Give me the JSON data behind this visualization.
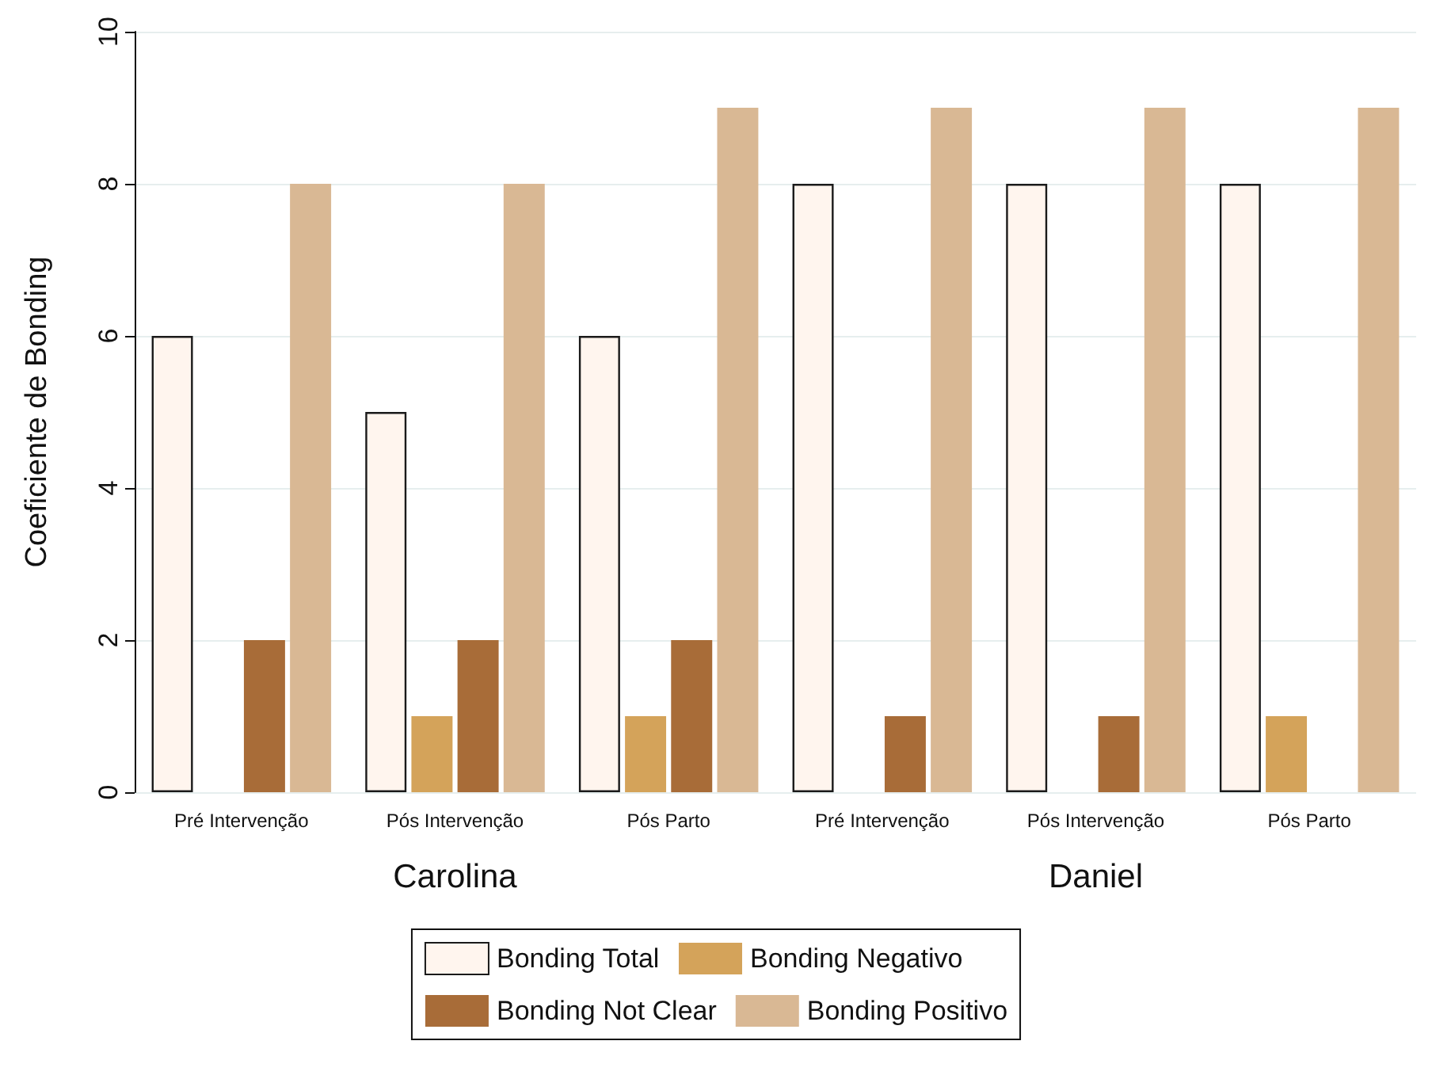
{
  "chart_data": {
    "type": "bar",
    "ylabel": "Coeficiente de Bonding",
    "categories": [
      "Pré Intervenção",
      "Pós Intervenção",
      "Pós Parto",
      "Pré Intervenção",
      "Pós Intervenção",
      "Pós Parto"
    ],
    "series": [
      {
        "name": "Bonding Total",
        "color": "#fff5ee",
        "values": [
          6,
          5,
          6,
          8,
          8,
          8
        ]
      },
      {
        "name": "Bonding Negativo",
        "color": "#d4a35a",
        "values": [
          0,
          1,
          1,
          0,
          0,
          1
        ]
      },
      {
        "name": "Bonding Not Clear",
        "color": "#a86c38",
        "values": [
          2,
          2,
          2,
          1,
          1,
          0
        ]
      },
      {
        "name": "Bonding Positivo",
        "color": "#d9b894",
        "values": [
          8,
          8,
          9,
          9,
          9,
          9
        ]
      }
    ],
    "annotations": [
      "Carolina",
      "Daniel"
    ],
    "ylim": [
      0,
      10
    ],
    "yticks": [
      0,
      2,
      4,
      6,
      8,
      10
    ],
    "grid": "y",
    "legend": "bottom"
  }
}
